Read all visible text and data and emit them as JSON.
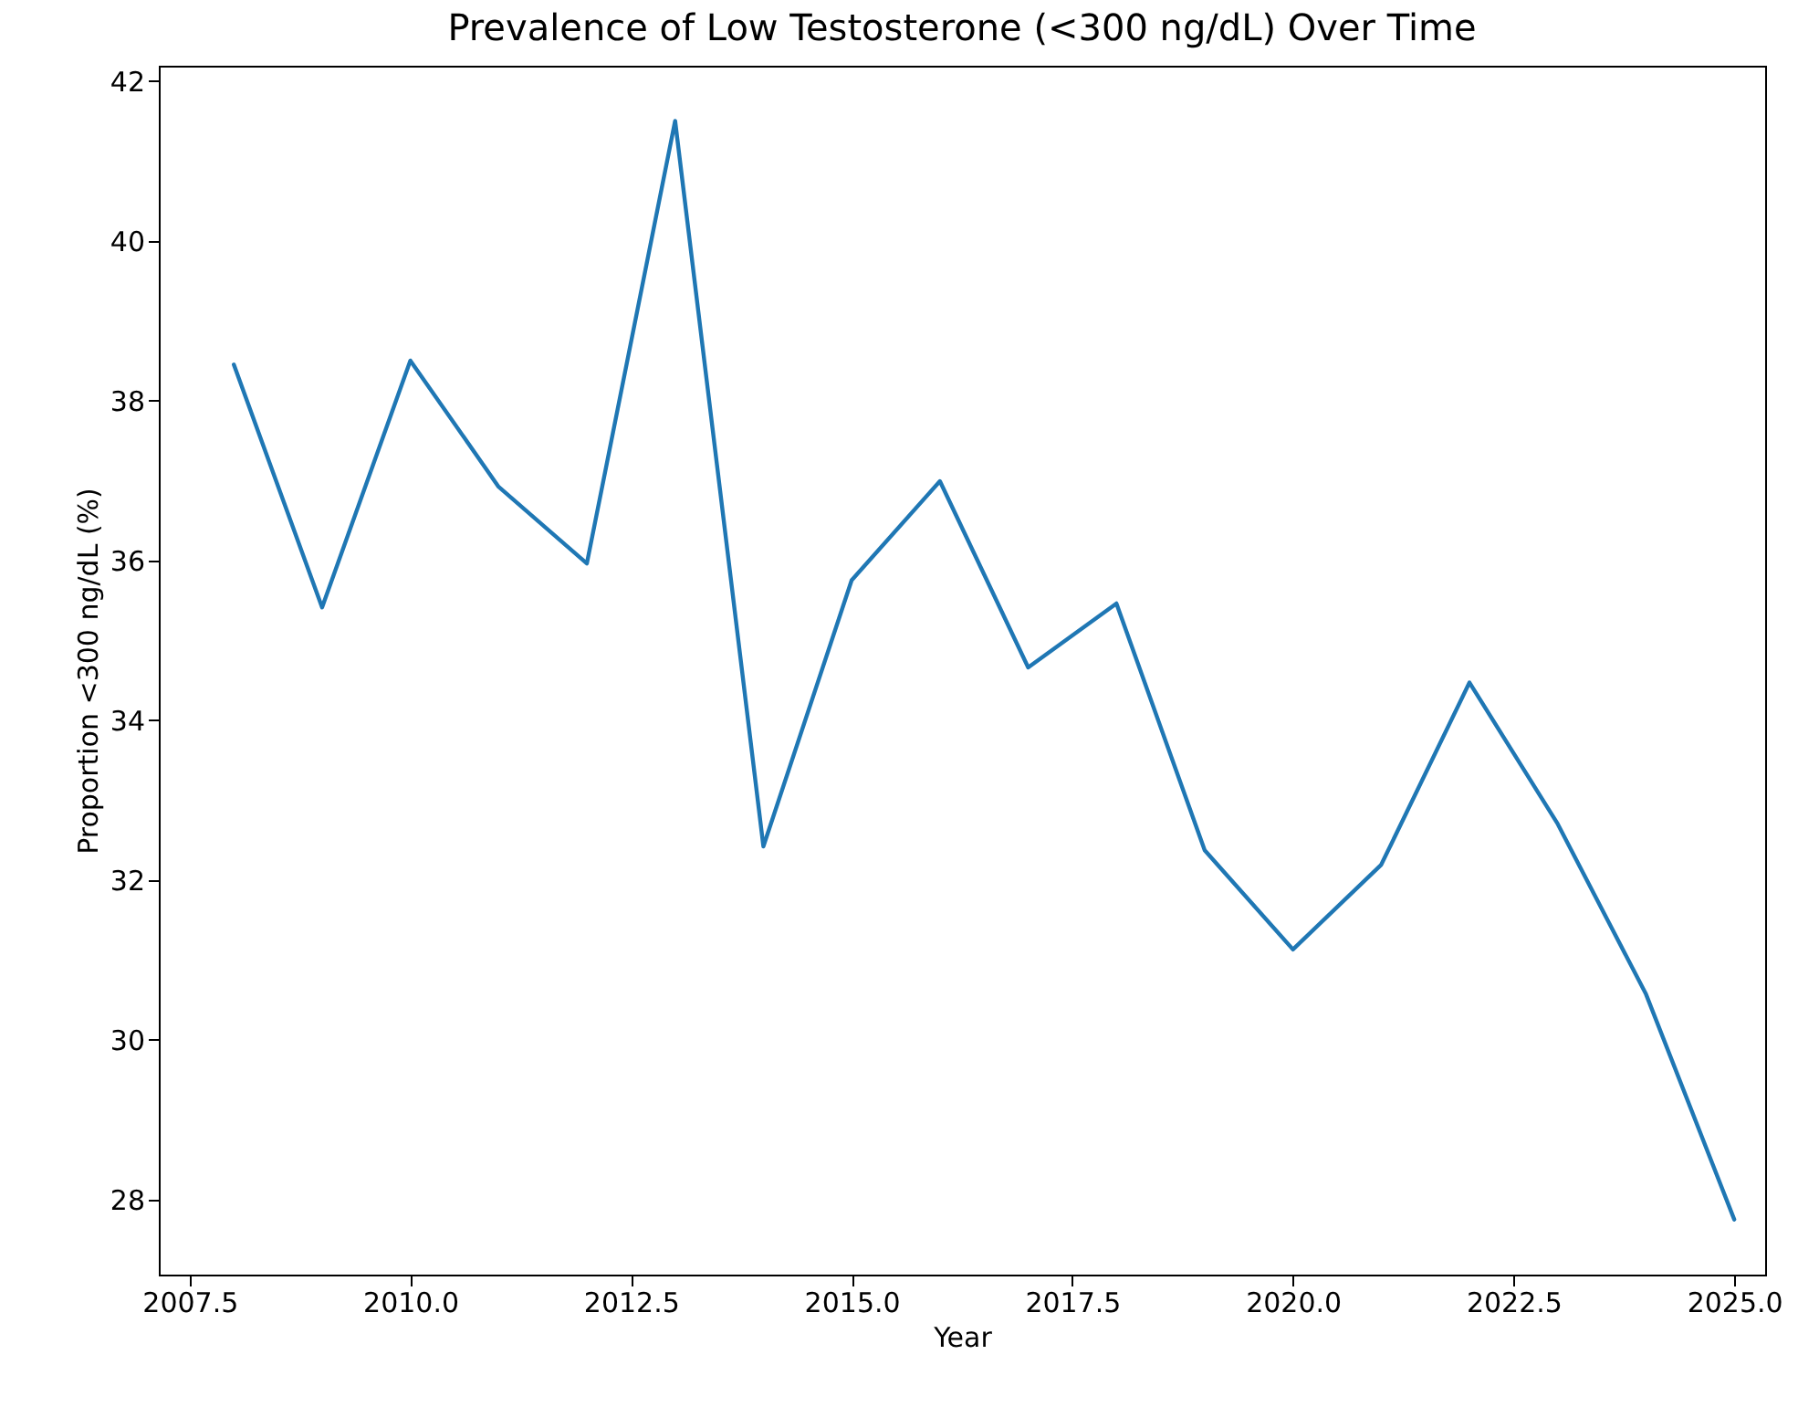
{
  "chart_data": {
    "type": "line",
    "title": "Prevalence of Low Testosterone (<300 ng/dL) Over Time",
    "xlabel": "Year",
    "ylabel": "Proportion <300 ng/dL (%)",
    "x": [
      2008,
      2009,
      2010,
      2011,
      2012,
      2013,
      2014,
      2015,
      2016,
      2017,
      2018,
      2019,
      2020,
      2021,
      2022,
      2023,
      2024,
      2025
    ],
    "series": [
      {
        "color": "#1f77b4",
        "values": [
          38.45,
          35.41,
          38.5,
          36.92,
          35.96,
          41.5,
          32.42,
          35.75,
          36.99,
          34.66,
          35.46,
          32.37,
          31.13,
          32.19,
          34.47,
          32.7,
          30.57,
          27.75
        ]
      }
    ],
    "xlim": [
      2007.15,
      2025.35
    ],
    "ylim": [
      27.06,
      42.19
    ],
    "xticks": [
      {
        "value": 2007.5,
        "label": "2007.5"
      },
      {
        "value": 2010,
        "label": "2010.0"
      },
      {
        "value": 2012.5,
        "label": "2012.5"
      },
      {
        "value": 2015,
        "label": "2015.0"
      },
      {
        "value": 2017.5,
        "label": "2017.5"
      },
      {
        "value": 2020,
        "label": "2020.0"
      },
      {
        "value": 2022.5,
        "label": "2022.5"
      },
      {
        "value": 2025,
        "label": "2025.0"
      }
    ],
    "yticks": [
      28,
      30,
      32,
      34,
      36,
      38,
      40,
      42
    ],
    "grid": false,
    "marker": "none",
    "line_style": "solid"
  }
}
